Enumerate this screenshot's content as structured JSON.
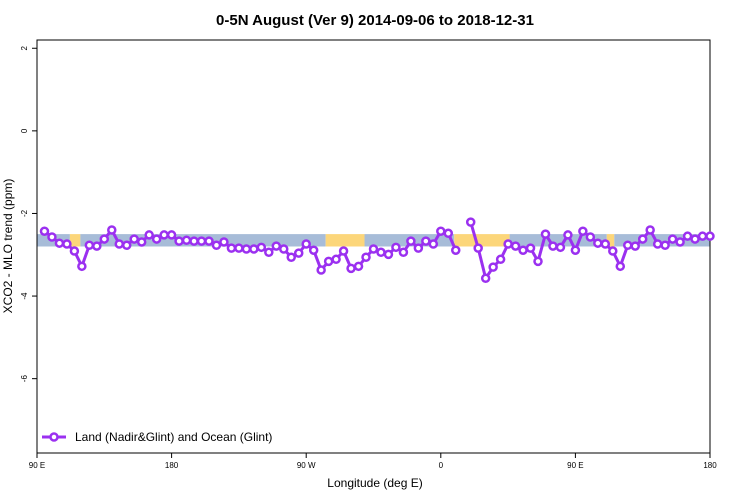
{
  "chart_data": {
    "type": "line",
    "title": "0-5N August (Ver 9)   2014-09-06 to 2018-12-31",
    "x_label": "Longitude (deg E)",
    "y_label": "XCO2 - MLO trend (ppm)",
    "xlim": [
      90,
      540
    ],
    "xticks": [
      {
        "value": 90,
        "label": "90 E"
      },
      180,
      {
        "value": 270,
        "label": "90 W"
      },
      {
        "value": 360,
        "label": "0"
      },
      {
        "value": 450,
        "label": "90 E"
      },
      {
        "value": 540,
        "label": "180"
      }
    ],
    "ylim": [
      -7.8,
      2.2
    ],
    "yticks": [
      -6,
      -4,
      -2,
      0,
      2
    ],
    "legend": "bottom-left",
    "surface_band": {
      "ylim": [
        -2.8,
        -2.5
      ],
      "segments": [
        {
          "from": 90,
          "to": 112,
          "color": "#a7bcd8"
        },
        {
          "from": 112,
          "to": 119,
          "color": "#fcd67a"
        },
        {
          "from": 119,
          "to": 283,
          "color": "#a7bcd8"
        },
        {
          "from": 283,
          "to": 309,
          "color": "#fcd67a"
        },
        {
          "from": 309,
          "to": 369,
          "color": "#a7bcd8"
        },
        {
          "from": 369,
          "to": 406,
          "color": "#fcd67a"
        },
        {
          "from": 406,
          "to": 471,
          "color": "#a7bcd8"
        },
        {
          "from": 471,
          "to": 476,
          "color": "#fcd67a"
        },
        {
          "from": 476,
          "to": 540,
          "color": "#a7bcd8"
        }
      ]
    },
    "x": [
      95,
      100,
      105,
      110,
      115,
      120,
      125,
      130,
      135,
      140,
      145,
      150,
      155,
      160,
      165,
      170,
      175,
      180,
      185,
      190,
      195,
      200,
      205,
      210,
      215,
      220,
      225,
      230,
      235,
      240,
      245,
      250,
      255,
      260,
      265,
      270,
      275,
      280,
      285,
      290,
      295,
      300,
      305,
      310,
      315,
      320,
      325,
      330,
      335,
      340,
      345,
      350,
      355,
      360,
      365,
      370,
      375,
      380,
      385,
      390,
      395,
      400,
      405,
      410,
      415,
      420,
      425,
      430,
      435,
      440,
      445,
      450,
      455,
      460,
      465,
      470,
      475,
      480,
      485,
      490,
      495,
      500,
      505,
      510,
      515,
      520,
      525,
      530,
      535,
      540
    ],
    "series": [
      {
        "name": "Land (Nadir&Glint) and Ocean (Glint)",
        "color": "#9b30f0",
        "values": [
          -2.43,
          -2.57,
          -2.72,
          -2.74,
          -2.91,
          -3.28,
          -2.77,
          -2.79,
          -2.62,
          -2.4,
          -2.74,
          -2.77,
          -2.62,
          -2.69,
          -2.52,
          -2.62,
          -2.52,
          -2.52,
          -2.67,
          -2.65,
          -2.67,
          -2.67,
          -2.67,
          -2.77,
          -2.69,
          -2.84,
          -2.84,
          -2.86,
          -2.86,
          -2.82,
          -2.94,
          -2.79,
          -2.86,
          -3.06,
          -2.96,
          -2.74,
          -2.89,
          -3.37,
          -3.16,
          -3.11,
          -2.91,
          -3.33,
          -3.28,
          -3.06,
          -2.86,
          -2.94,
          -2.99,
          -2.82,
          -2.94,
          -2.67,
          -2.84,
          -2.67,
          -2.74,
          -2.43,
          -2.48,
          -2.89,
          null,
          -2.21,
          -2.84,
          -3.57,
          -3.3,
          -3.11,
          -2.74,
          -2.79,
          -2.89,
          -2.84,
          -3.16,
          -2.5,
          -2.79,
          -2.82,
          -2.52,
          -2.89,
          -2.43,
          -2.57,
          -2.72,
          -2.74,
          -2.91,
          -3.28,
          -2.77,
          -2.79,
          -2.62,
          -2.4,
          -2.74,
          -2.77,
          -2.62,
          -2.69,
          -2.55,
          -2.62,
          -2.55,
          -2.55
        ]
      }
    ]
  }
}
